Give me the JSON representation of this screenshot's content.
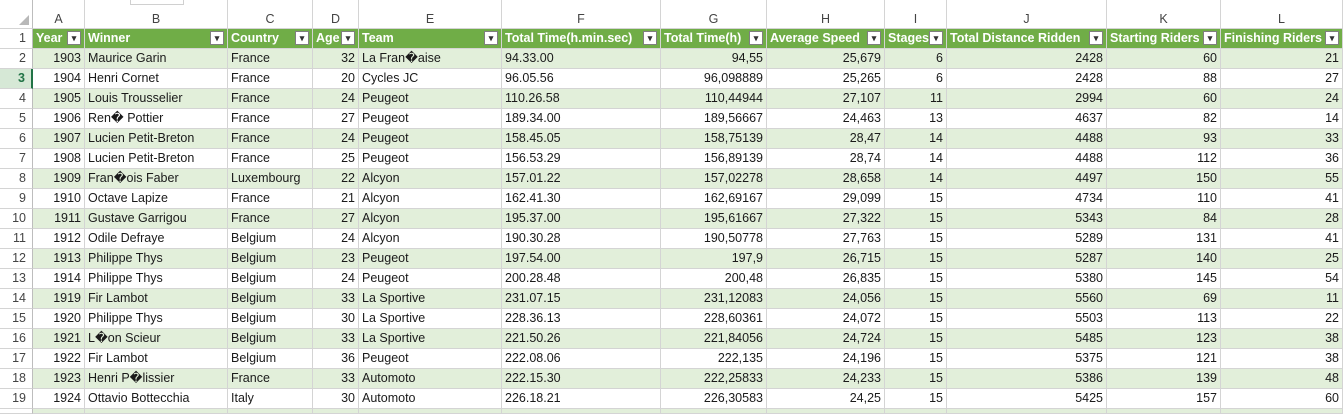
{
  "columns": [
    "A",
    "B",
    "C",
    "D",
    "E",
    "F",
    "G",
    "H",
    "I",
    "J",
    "K",
    "L"
  ],
  "headers": [
    "Year",
    "Winner",
    "Country",
    "Age",
    "Team",
    "Total Time(h.min.sec)",
    "Total Time(h)",
    "Average Speed",
    "Stages",
    "Total Distance Ridden",
    "Starting Riders",
    "Finishing Riders"
  ],
  "header_row_number": "1",
  "active_row": "3",
  "rows": [
    {
      "n": "2",
      "cells": [
        "1903",
        "Maurice Garin",
        "France",
        "32",
        "La Fran�aise",
        "94.33.00",
        "94,55",
        "25,679",
        "6",
        "2428",
        "60",
        "21"
      ]
    },
    {
      "n": "3",
      "cells": [
        "1904",
        "Henri Cornet",
        "France",
        "20",
        "Cycles JC",
        "96.05.56",
        "96,098889",
        "25,265",
        "6",
        "2428",
        "88",
        "27"
      ]
    },
    {
      "n": "4",
      "cells": [
        "1905",
        "Louis Trousselier",
        "France",
        "24",
        "Peugeot",
        "110.26.58",
        "110,44944",
        "27,107",
        "11",
        "2994",
        "60",
        "24"
      ]
    },
    {
      "n": "5",
      "cells": [
        "1906",
        "Ren� Pottier",
        "France",
        "27",
        "Peugeot",
        "189.34.00",
        "189,56667",
        "24,463",
        "13",
        "4637",
        "82",
        "14"
      ]
    },
    {
      "n": "6",
      "cells": [
        "1907",
        "Lucien Petit-Breton",
        "France",
        "24",
        "Peugeot",
        "158.45.05",
        "158,75139",
        "28,47",
        "14",
        "4488",
        "93",
        "33"
      ]
    },
    {
      "n": "7",
      "cells": [
        "1908",
        "Lucien Petit-Breton",
        "France",
        "25",
        "Peugeot",
        "156.53.29",
        "156,89139",
        "28,74",
        "14",
        "4488",
        "112",
        "36"
      ]
    },
    {
      "n": "8",
      "cells": [
        "1909",
        "Fran�ois Faber",
        "Luxembourg",
        "22",
        "Alcyon",
        "157.01.22",
        "157,02278",
        "28,658",
        "14",
        "4497",
        "150",
        "55"
      ]
    },
    {
      "n": "9",
      "cells": [
        "1910",
        "Octave Lapize",
        "France",
        "21",
        "Alcyon",
        "162.41.30",
        "162,69167",
        "29,099",
        "15",
        "4734",
        "110",
        "41"
      ]
    },
    {
      "n": "10",
      "cells": [
        "1911",
        "Gustave Garrigou",
        "France",
        "27",
        "Alcyon",
        "195.37.00",
        "195,61667",
        "27,322",
        "15",
        "5343",
        "84",
        "28"
      ]
    },
    {
      "n": "11",
      "cells": [
        "1912",
        "Odile Defraye",
        "Belgium",
        "24",
        "Alcyon",
        "190.30.28",
        "190,50778",
        "27,763",
        "15",
        "5289",
        "131",
        "41"
      ]
    },
    {
      "n": "12",
      "cells": [
        "1913",
        "Philippe Thys",
        "Belgium",
        "23",
        "Peugeot",
        "197.54.00",
        "197,9",
        "26,715",
        "15",
        "5287",
        "140",
        "25"
      ]
    },
    {
      "n": "13",
      "cells": [
        "1914",
        "Philippe Thys",
        "Belgium",
        "24",
        "Peugeot",
        "200.28.48",
        "200,48",
        "26,835",
        "15",
        "5380",
        "145",
        "54"
      ]
    },
    {
      "n": "14",
      "cells": [
        "1919",
        "Fir Lambot",
        "Belgium",
        "33",
        "La Sportive",
        "231.07.15",
        "231,12083",
        "24,056",
        "15",
        "5560",
        "69",
        "11"
      ]
    },
    {
      "n": "15",
      "cells": [
        "1920",
        "Philippe Thys",
        "Belgium",
        "30",
        "La Sportive",
        "228.36.13",
        "228,60361",
        "24,072",
        "15",
        "5503",
        "113",
        "22"
      ]
    },
    {
      "n": "16",
      "cells": [
        "1921",
        "L�on Scieur",
        "Belgium",
        "33",
        "La Sportive",
        "221.50.26",
        "221,84056",
        "24,724",
        "15",
        "5485",
        "123",
        "38"
      ]
    },
    {
      "n": "17",
      "cells": [
        "1922",
        "Fir Lambot",
        "Belgium",
        "36",
        "Peugeot",
        "222.08.06",
        "222,135",
        "24,196",
        "15",
        "5375",
        "121",
        "38"
      ]
    },
    {
      "n": "18",
      "cells": [
        "1923",
        "Henri P�lissier",
        "France",
        "33",
        "Automoto",
        "222.15.30",
        "222,25833",
        "24,233",
        "15",
        "5386",
        "139",
        "48"
      ]
    },
    {
      "n": "19",
      "cells": [
        "1924",
        "Ottavio Bottecchia",
        "Italy",
        "30",
        "Automoto",
        "226.18.21",
        "226,30583",
        "24,25",
        "15",
        "5425",
        "157",
        "60"
      ]
    }
  ]
}
